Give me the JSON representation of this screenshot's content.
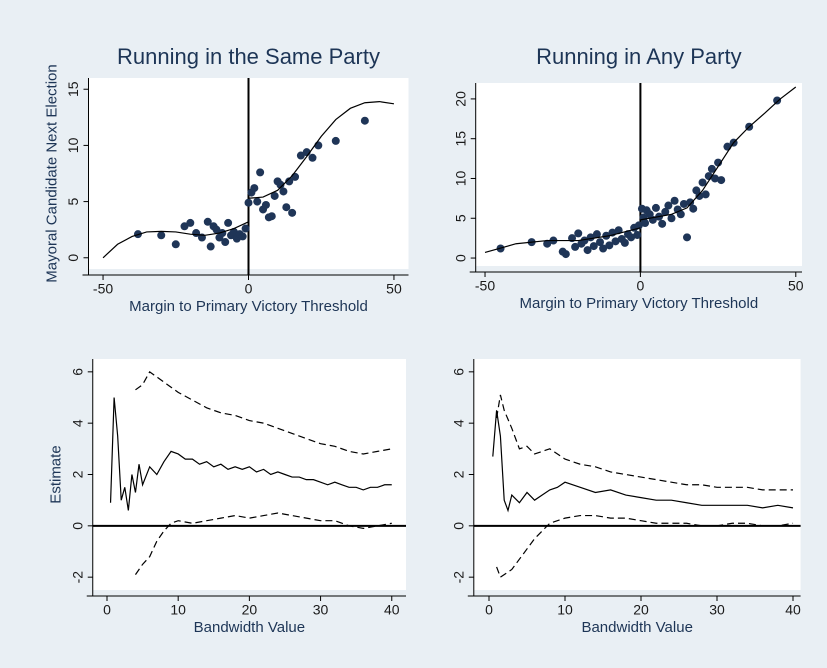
{
  "chart_data": [
    {
      "type": "scatter",
      "title": "Running in the Same Party",
      "x_label": "Margin to Primary Victory Threshold",
      "y_label": "Mayoral Candidate Next Election",
      "xlim": [
        -55,
        55
      ],
      "ylim": [
        -1,
        16
      ],
      "xticks": [
        -50,
        0,
        50
      ],
      "yticks": [
        0,
        5,
        10,
        15
      ],
      "xline": 0,
      "series": [
        {
          "mark": "point",
          "color": "#1f3557",
          "x": [
            -38,
            -30,
            -25,
            -22,
            -20,
            -18,
            -16,
            -14,
            -13,
            -12,
            -11,
            -10,
            -9,
            -8,
            -7,
            -6,
            -5,
            -4,
            -3,
            -2,
            -1,
            0,
            1,
            2,
            3,
            4,
            5,
            6,
            7,
            8,
            9,
            10,
            11,
            12,
            13,
            14,
            15,
            16,
            18,
            20,
            22,
            24,
            30,
            40
          ],
          "values": [
            2.1,
            2.0,
            1.2,
            2.8,
            3.1,
            2.2,
            1.8,
            3.2,
            1.0,
            2.8,
            2.5,
            1.8,
            2.2,
            1.4,
            3.1,
            2.0,
            2.3,
            1.7,
            2.1,
            1.9,
            2.6,
            4.9,
            5.8,
            6.2,
            5.0,
            7.6,
            4.3,
            4.7,
            3.6,
            3.7,
            5.5,
            6.8,
            6.5,
            5.9,
            4.5,
            6.8,
            4.0,
            7.2,
            9.1,
            9.4,
            8.9,
            10.0,
            10.4,
            12.2
          ]
        },
        {
          "mark": "line",
          "color": "#000000",
          "x": [
            -50,
            -45,
            -40,
            -35,
            -30,
            -25,
            -20,
            -15,
            -10,
            -5,
            0
          ],
          "values": [
            0,
            1.2,
            1.9,
            2.3,
            2.35,
            2.3,
            2.1,
            2.0,
            2.2,
            2.6,
            3.2
          ]
        },
        {
          "mark": "line",
          "color": "#000000",
          "x": [
            0,
            5,
            10,
            15,
            20,
            25,
            30,
            35,
            40,
            45,
            50
          ],
          "values": [
            5.3,
            5.4,
            6.0,
            7.3,
            9.0,
            10.8,
            12.3,
            13.3,
            13.8,
            13.9,
            13.7
          ]
        }
      ]
    },
    {
      "type": "scatter",
      "title": "Running in Any Party",
      "x_label": "Margin to Primary Victory Threshold",
      "xlim": [
        -53,
        52
      ],
      "ylim": [
        -1,
        22
      ],
      "xticks": [
        -50,
        0,
        50
      ],
      "yticks": [
        0,
        5,
        10,
        15,
        20
      ],
      "xline": 0,
      "series": [
        {
          "mark": "point",
          "color": "#1f3557",
          "x": [
            -45,
            -35,
            -30,
            -28,
            -25,
            -24,
            -22,
            -21,
            -20,
            -19,
            -18,
            -17,
            -16,
            -15,
            -14,
            -13,
            -12,
            -11,
            -10,
            -9,
            -8,
            -7,
            -6,
            -5,
            -4,
            -3,
            -2,
            -1,
            -0.5,
            0.5,
            1,
            1.5,
            2,
            3,
            4,
            5,
            6,
            7,
            8,
            9,
            10,
            11,
            12,
            13,
            14,
            15,
            16,
            17,
            18,
            19,
            20,
            21,
            22,
            23,
            24,
            25,
            26,
            28,
            30,
            35,
            44
          ],
          "values": [
            1.2,
            2.0,
            1.8,
            2.2,
            0.8,
            0.5,
            2.5,
            1.4,
            3.1,
            1.8,
            2.2,
            1.0,
            2.6,
            1.5,
            3.0,
            2.0,
            1.2,
            2.8,
            1.6,
            3.2,
            2.1,
            3.5,
            2.4,
            1.9,
            3.0,
            2.6,
            3.8,
            2.9,
            4.1,
            6.2,
            5.1,
            4.4,
            6.0,
            5.5,
            4.8,
            6.3,
            5.2,
            4.3,
            5.8,
            6.6,
            5.0,
            7.2,
            6.1,
            5.5,
            6.8,
            2.6,
            7.0,
            6.2,
            8.5,
            7.8,
            9.5,
            8.0,
            10.3,
            11.2,
            10.0,
            12.0,
            9.8,
            14.0,
            14.5,
            16.5,
            19.8
          ]
        },
        {
          "mark": "line",
          "color": "#000000",
          "x": [
            -50,
            -40,
            -30,
            -20,
            -10,
            0
          ],
          "values": [
            0.7,
            1.8,
            2.2,
            2.2,
            2.8,
            3.8
          ]
        },
        {
          "mark": "line",
          "color": "#000000",
          "x": [
            0,
            10,
            15,
            20,
            25,
            30,
            35,
            40,
            45,
            50
          ],
          "values": [
            4.8,
            5.5,
            6.3,
            8.5,
            11.5,
            14.5,
            16.5,
            18.2,
            20,
            21.5
          ]
        }
      ]
    },
    {
      "type": "line",
      "x_label": "Bandwidth Value",
      "y_label": "Estimate",
      "xlim": [
        -2,
        42
      ],
      "ylim": [
        -2.5,
        6.5
      ],
      "xticks": [
        0,
        10,
        20,
        30,
        40
      ],
      "yticks": [
        -2,
        0,
        2,
        4,
        6
      ],
      "yline": 0,
      "series": [
        {
          "mark": "line",
          "color": "#000000",
          "x": [
            0.5,
            1,
            1.5,
            2,
            2.5,
            3,
            3.5,
            4,
            4.5,
            5,
            6,
            7,
            8,
            9,
            10,
            11,
            12,
            13,
            14,
            15,
            16,
            17,
            18,
            19,
            20,
            21,
            22,
            23,
            24,
            25,
            26,
            27,
            28,
            29,
            30,
            31,
            32,
            33,
            34,
            35,
            36,
            37,
            38,
            39,
            40
          ],
          "values": [
            0.9,
            5.0,
            3.5,
            1.0,
            1.5,
            0.6,
            2.0,
            1.3,
            2.4,
            1.6,
            2.3,
            2.0,
            2.5,
            2.9,
            2.8,
            2.6,
            2.6,
            2.4,
            2.5,
            2.3,
            2.4,
            2.2,
            2.3,
            2.2,
            2.3,
            2.1,
            2.2,
            2.0,
            2.1,
            2.0,
            1.9,
            1.9,
            1.8,
            1.8,
            1.7,
            1.6,
            1.7,
            1.6,
            1.5,
            1.5,
            1.4,
            1.5,
            1.5,
            1.6,
            1.6
          ]
        },
        {
          "mark": "line",
          "dash": true,
          "color": "#000000",
          "x": [
            4,
            5,
            6,
            7,
            8,
            9,
            10,
            12,
            14,
            16,
            18,
            20,
            22,
            24,
            26,
            28,
            30,
            32,
            34,
            36,
            38,
            40
          ],
          "values": [
            5.3,
            5.5,
            6.0,
            5.8,
            5.6,
            5.4,
            5.2,
            4.9,
            4.6,
            4.4,
            4.3,
            4.1,
            4.0,
            3.8,
            3.6,
            3.4,
            3.2,
            3.1,
            2.9,
            2.8,
            2.9,
            3.0
          ]
        },
        {
          "mark": "line",
          "dash": true,
          "color": "#000000",
          "x": [
            4,
            5,
            6,
            7,
            8,
            9,
            10,
            12,
            14,
            16,
            18,
            20,
            22,
            24,
            26,
            28,
            30,
            32,
            34,
            36,
            38,
            40
          ],
          "values": [
            -1.9,
            -1.5,
            -1.2,
            -0.6,
            -0.2,
            0.1,
            0.2,
            0.1,
            0.2,
            0.3,
            0.4,
            0.3,
            0.4,
            0.5,
            0.4,
            0.3,
            0.2,
            0.2,
            0.0,
            -0.1,
            0.0,
            0.1
          ]
        }
      ]
    },
    {
      "type": "line",
      "x_label": "Bandwidth Value",
      "xlim": [
        -2,
        41
      ],
      "ylim": [
        -2.5,
        6.5
      ],
      "xticks": [
        0,
        10,
        20,
        30,
        40
      ],
      "yticks": [
        -2,
        0,
        2,
        4,
        6
      ],
      "yline": 0,
      "series": [
        {
          "mark": "line",
          "color": "#000000",
          "x": [
            0.5,
            1,
            1.5,
            2,
            2.5,
            3,
            4,
            5,
            6,
            7,
            8,
            9,
            10,
            12,
            14,
            16,
            18,
            20,
            22,
            24,
            26,
            28,
            30,
            32,
            34,
            36,
            38,
            40
          ],
          "values": [
            2.7,
            4.5,
            3.5,
            1.0,
            0.6,
            1.2,
            0.9,
            1.3,
            1.0,
            1.2,
            1.4,
            1.5,
            1.7,
            1.5,
            1.3,
            1.4,
            1.2,
            1.1,
            1.0,
            1.0,
            0.9,
            0.8,
            0.8,
            0.8,
            0.8,
            0.7,
            0.8,
            0.7
          ]
        },
        {
          "mark": "line",
          "dash": true,
          "color": "#000000",
          "x": [
            1,
            1.5,
            2,
            3,
            4,
            5,
            6,
            7,
            8,
            10,
            12,
            14,
            16,
            18,
            20,
            22,
            24,
            26,
            28,
            30,
            32,
            34,
            36,
            38,
            40
          ],
          "values": [
            4.2,
            5.1,
            4.5,
            3.8,
            3.0,
            3.1,
            2.8,
            2.9,
            3.0,
            2.6,
            2.4,
            2.3,
            2.1,
            2.0,
            1.9,
            1.8,
            1.7,
            1.6,
            1.6,
            1.5,
            1.5,
            1.5,
            1.4,
            1.4,
            1.4
          ]
        },
        {
          "mark": "line",
          "dash": true,
          "color": "#000000",
          "x": [
            1,
            1.5,
            2,
            3,
            4,
            5,
            6,
            7,
            8,
            10,
            12,
            14,
            16,
            18,
            20,
            22,
            24,
            26,
            28,
            30,
            32,
            34,
            36,
            38,
            40
          ],
          "values": [
            -1.6,
            -2.0,
            -1.9,
            -1.7,
            -1.3,
            -0.9,
            -0.5,
            -0.2,
            0.1,
            0.3,
            0.4,
            0.4,
            0.3,
            0.3,
            0.2,
            0.1,
            0.1,
            0.1,
            0.0,
            0.0,
            0.1,
            0.1,
            0.0,
            0.0,
            0.1
          ]
        }
      ]
    }
  ]
}
